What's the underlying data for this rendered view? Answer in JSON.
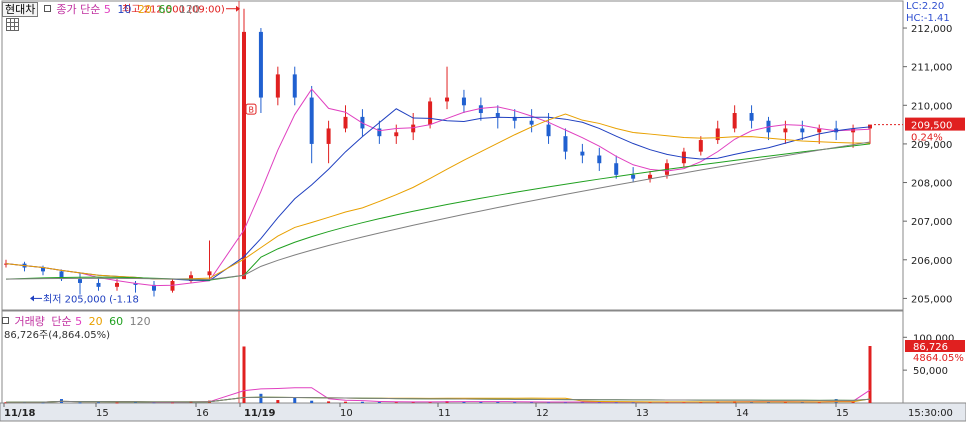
{
  "header": {
    "stock_name": "현대차",
    "price_label": "종가 단순",
    "ma_periods": [
      "5",
      "10",
      "20",
      "60",
      "120"
    ],
    "ma_colors": [
      "#e040c0",
      "#2040c0",
      "#e8a000",
      "#20a020",
      "#808080"
    ],
    "lc": "LC:2.20",
    "hc": "HC:-1.41"
  },
  "price_panel": {
    "high_annotation": "최고 212,500 (09:00)",
    "low_annotation": "최저 205,000 (-1.18",
    "badge": "B",
    "current_price": "209,500",
    "current_change": "0.24%",
    "yticks": [
      "212,000",
      "211,000",
      "210,000",
      "209,000",
      "208,000",
      "207,000",
      "206,000",
      "205,000"
    ]
  },
  "volume_panel": {
    "label": "거래량",
    "ma_label": "단순",
    "ma_periods": [
      "5",
      "20",
      "60",
      "120"
    ],
    "ma_colors": [
      "#e040c0",
      "#e8a000",
      "#20a020",
      "#808080"
    ],
    "value_line": "86,726주(4,864.05%)",
    "current_volume": "86,726",
    "current_pct": "4864.05%",
    "yticks": [
      "100,000",
      "50,000"
    ]
  },
  "x_axis": {
    "labels": [
      "11/18",
      "15",
      "16",
      "11/19",
      "10",
      "11",
      "12",
      "13",
      "14",
      "15"
    ],
    "time_label": "15:30:00"
  },
  "chart_data": {
    "type": "candlestick",
    "ylim": [
      204700,
      212700
    ],
    "volume_ylim": [
      0,
      140000
    ],
    "prev_close": 205500,
    "day_high": 212500,
    "day_low": 205000,
    "close": 209500,
    "close_volume": 86726,
    "x_tick_categories": [
      "11/18",
      "15",
      "16",
      "11/19",
      "10",
      "11",
      "12",
      "13",
      "14",
      "15"
    ],
    "price_path_day1": [
      [
        205900,
        206000,
        205800,
        205900
      ],
      [
        205900,
        205950,
        205700,
        205800
      ],
      [
        205800,
        205850,
        205600,
        205700
      ],
      [
        205700,
        205750,
        205450,
        205500
      ],
      [
        205500,
        205650,
        205100,
        205400
      ],
      [
        205400,
        205550,
        205200,
        205300
      ],
      [
        205300,
        205500,
        205200,
        205400
      ],
      [
        205400,
        205450,
        205150,
        205350
      ],
      [
        205350,
        205450,
        205050,
        205200
      ],
      [
        205200,
        205500,
        205150,
        205450
      ],
      [
        205450,
        205700,
        205400,
        205600
      ],
      [
        205600,
        206500,
        205500,
        205700
      ]
    ],
    "price_path_day2": [
      [
        205500,
        212500,
        205500,
        211900
      ],
      [
        211900,
        212000,
        209800,
        210200
      ],
      [
        210200,
        211000,
        210000,
        210800
      ],
      [
        210800,
        211000,
        210000,
        210200
      ],
      [
        210200,
        210500,
        208500,
        209000
      ],
      [
        209000,
        209600,
        208500,
        209400
      ],
      [
        209400,
        210000,
        209300,
        209700
      ],
      [
        209700,
        209900,
        209200,
        209400
      ],
      [
        209400,
        209600,
        209000,
        209200
      ],
      [
        209200,
        209500,
        209000,
        209300
      ],
      [
        209300,
        209800,
        209100,
        209500
      ],
      [
        209500,
        210200,
        209400,
        210100
      ],
      [
        210100,
        211000,
        209900,
        210200
      ],
      [
        210200,
        210400,
        209800,
        210000
      ],
      [
        210000,
        210200,
        209600,
        209800
      ],
      [
        209800,
        210000,
        209400,
        209700
      ],
      [
        209700,
        209900,
        209400,
        209600
      ],
      [
        209600,
        209900,
        209300,
        209500
      ],
      [
        209500,
        209800,
        209000,
        209200
      ],
      [
        209200,
        209400,
        208600,
        208800
      ],
      [
        208800,
        209000,
        208500,
        208700
      ],
      [
        208700,
        208900,
        208300,
        208500
      ],
      [
        208500,
        208700,
        208100,
        208200
      ],
      [
        208200,
        208400,
        208000,
        208100
      ],
      [
        208100,
        208300,
        208000,
        208200
      ],
      [
        208200,
        208600,
        208100,
        208500
      ],
      [
        208500,
        208900,
        208400,
        208800
      ],
      [
        208800,
        209200,
        208700,
        209100
      ],
      [
        209100,
        209600,
        209000,
        209400
      ],
      [
        209400,
        210000,
        209300,
        209800
      ],
      [
        209800,
        210000,
        209400,
        209600
      ],
      [
        209600,
        209700,
        209100,
        209300
      ],
      [
        209300,
        209600,
        209000,
        209400
      ],
      [
        209400,
        209600,
        209100,
        209300
      ],
      [
        209300,
        209500,
        209000,
        209400
      ],
      [
        209400,
        209600,
        209100,
        209300
      ],
      [
        209300,
        209500,
        208900,
        209400
      ],
      [
        209400,
        209500,
        209000,
        209500
      ]
    ],
    "volume_path_day1": [
      1200,
      1500,
      1100,
      6000,
      900,
      1300,
      800,
      1700,
      1200,
      1000,
      2600,
      3600
    ],
    "volume_path_day2": [
      86000,
      14000,
      4500,
      8000,
      3500,
      2500,
      2000,
      1800,
      1500,
      1400,
      1600,
      2200,
      3000,
      2000,
      1600,
      1800,
      1400,
      1500,
      1300,
      1400,
      2000,
      1500,
      1300,
      1200,
      1600,
      1400,
      1500,
      1600,
      2400,
      2800,
      1800,
      1500,
      2000,
      1600,
      1400,
      6000,
      2500,
      86726
    ]
  }
}
